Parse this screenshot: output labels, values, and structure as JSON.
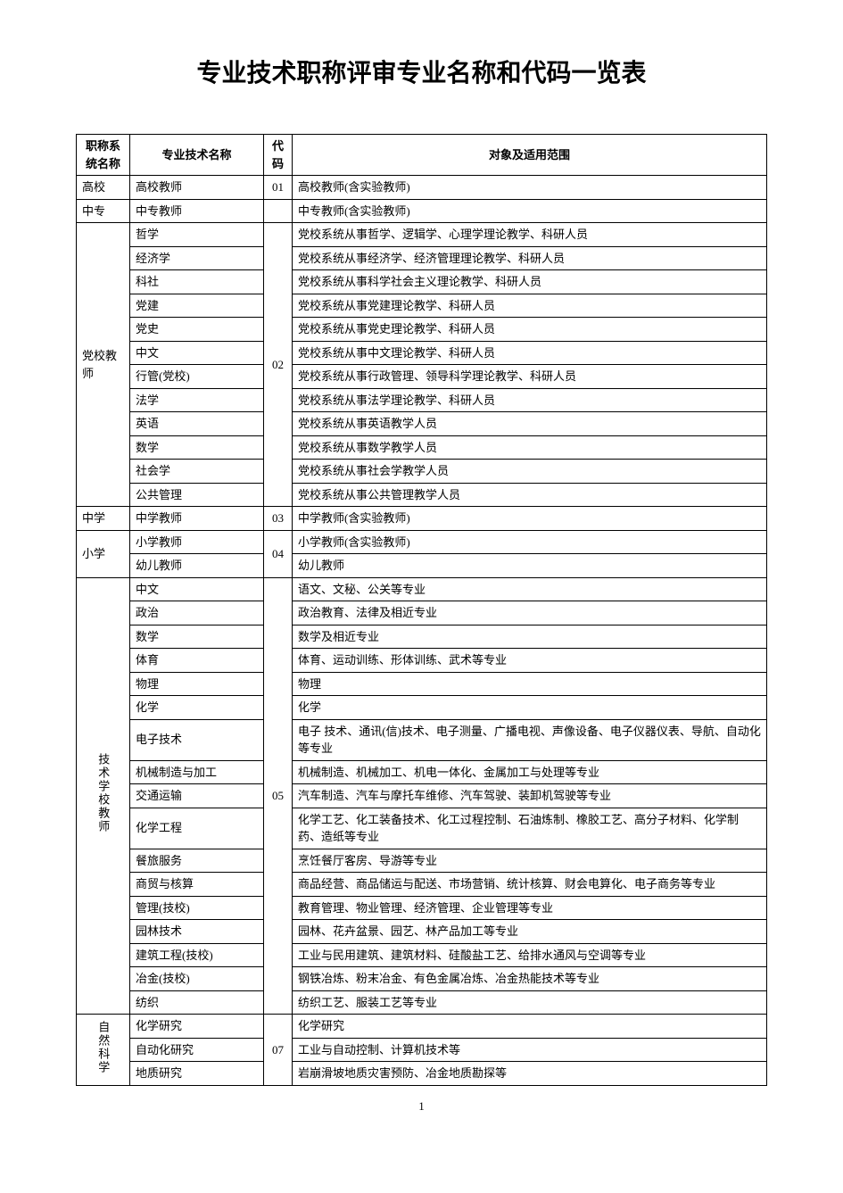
{
  "title": "专业技术职称评审专业名称和代码一览表",
  "page_number": "1",
  "columns": {
    "system": "职称系统名称",
    "name": "专业技术名称",
    "code": "代码",
    "scope": "对象及适用范围"
  },
  "groups": [
    {
      "system": "高校",
      "code": "01",
      "vertical": false,
      "rows": [
        {
          "name": "高校教师",
          "scope": "高校教师(含实验教师)"
        }
      ]
    },
    {
      "system": "中专",
      "code": "",
      "vertical": false,
      "rows": [
        {
          "name": "中专教师",
          "scope": "中专教师(含实验教师)"
        }
      ]
    },
    {
      "system": "党校教师",
      "code": "02",
      "vertical": false,
      "rows": [
        {
          "name": "哲学",
          "scope": "党校系统从事哲学、逻辑学、心理学理论教学、科研人员"
        },
        {
          "name": "经济学",
          "scope": "党校系统从事经济学、经济管理理论教学、科研人员"
        },
        {
          "name": "科社",
          "scope": "党校系统从事科学社会主义理论教学、科研人员"
        },
        {
          "name": "党建",
          "scope": "党校系统从事党建理论教学、科研人员"
        },
        {
          "name": "党史",
          "scope": "党校系统从事党史理论教学、科研人员"
        },
        {
          "name": "中文",
          "scope": "党校系统从事中文理论教学、科研人员"
        },
        {
          "name": "行管(党校)",
          "scope": "党校系统从事行政管理、领导科学理论教学、科研人员"
        },
        {
          "name": "法学",
          "scope": "党校系统从事法学理论教学、科研人员"
        },
        {
          "name": "英语",
          "scope": "党校系统从事英语教学人员"
        },
        {
          "name": "数学",
          "scope": "党校系统从事数学教学人员"
        },
        {
          "name": "社会学",
          "scope": "党校系统从事社会学教学人员"
        },
        {
          "name": "公共管理",
          "scope": "党校系统从事公共管理教学人员"
        }
      ]
    },
    {
      "system": "中学",
      "code": "03",
      "vertical": false,
      "rows": [
        {
          "name": "中学教师",
          "scope": "中学教师(含实验教师)"
        }
      ]
    },
    {
      "system": "小学",
      "code": "04",
      "vertical": false,
      "rows": [
        {
          "name": "小学教师",
          "scope": "小学教师(含实验教师)"
        },
        {
          "name": "幼儿教师",
          "scope": "幼儿教师"
        }
      ]
    },
    {
      "system": "技术学校教师",
      "code": "05",
      "vertical": true,
      "rows": [
        {
          "name": "中文",
          "scope": "语文、文秘、公关等专业"
        },
        {
          "name": "政治",
          "scope": "政治教育、法律及相近专业"
        },
        {
          "name": "数学",
          "scope": "数学及相近专业"
        },
        {
          "name": "体育",
          "scope": "体育、运动训练、形体训练、武术等专业"
        },
        {
          "name": "物理",
          "scope": "物理"
        },
        {
          "name": "化学",
          "scope": "化学"
        },
        {
          "name": "电子技术",
          "scope": "电子 技术、通讯(信)技术、电子测量、广播电视、声像设备、电子仪器仪表、导航、自动化等专业"
        },
        {
          "name": "机械制造与加工",
          "scope": "机械制造、机械加工、机电一体化、金属加工与处理等专业"
        },
        {
          "name": "交通运输",
          "scope": "汽车制造、汽车与摩托车维修、汽车驾驶、装卸机驾驶等专业"
        },
        {
          "name": "化学工程",
          "scope": "化学工艺、化工装备技术、化工过程控制、石油炼制、橡胶工艺、高分子材料、化学制药、造纸等专业"
        },
        {
          "name": "餐旅服务",
          "scope": "烹饪餐厅客房、导游等专业"
        },
        {
          "name": "商贸与核算",
          "scope": "商品经营、商品储运与配送、市场营销、统计核算、财会电算化、电子商务等专业"
        },
        {
          "name": "管理(技校)",
          "scope": "教育管理、物业管理、经济管理、企业管理等专业"
        },
        {
          "name": "园林技术",
          "scope": "园林、花卉盆景、园艺、林产品加工等专业"
        },
        {
          "name": "建筑工程(技校)",
          "scope": "工业与民用建筑、建筑材料、硅酸盐工艺、给排水通风与空调等专业"
        },
        {
          "name": "冶金(技校)",
          "scope": "钢铁冶炼、粉末冶金、有色金属冶炼、冶金热能技术等专业"
        },
        {
          "name": "纺织",
          "scope": "纺织工艺、服装工艺等专业"
        }
      ]
    },
    {
      "system": "自然科学",
      "code": "07",
      "vertical": true,
      "rows": [
        {
          "name": "化学研究",
          "scope": "化学研究"
        },
        {
          "name": "自动化研究",
          "scope": "工业与自动控制、计算机技术等"
        },
        {
          "name": "地质研究",
          "scope": "岩崩滑坡地质灾害预防、冶金地质勘探等"
        }
      ]
    }
  ]
}
